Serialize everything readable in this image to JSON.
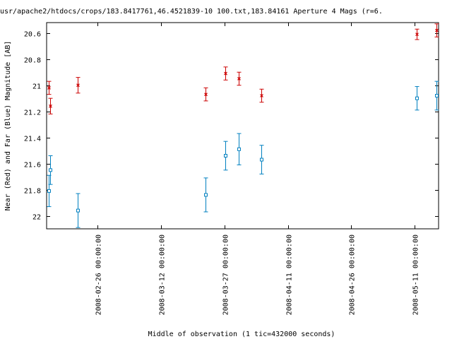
{
  "chart_data": {
    "type": "scatter",
    "title": "usr/apache2/htdocs/crops/183.8417761,46.4521839-10 100.txt,183.84161   Aperture 4 Mags (r=6.",
    "xlabel": "Middle of observation (1 tic=432000 seconds)",
    "ylabel": "Near (Red) and Far (Blue) Magnitude [AB]",
    "ylim": [
      22.1,
      20.52
    ],
    "y_inverted": true,
    "xlim": [
      "2008-02-13 22:00:00",
      "2008-05-16 16:00:00"
    ],
    "x_ticks": [
      "2008-02-26 00:00:00",
      "2008-03-12 00:00:00",
      "2008-03-27 00:00:00",
      "2008-04-11 00:00:00",
      "2008-04-26 00:00:00",
      "2008-05-11 00:00:00"
    ],
    "y_ticks": [
      "20.6",
      "20.8",
      "21",
      "21.2",
      "21.4",
      "21.6",
      "21.8",
      "22"
    ],
    "grid": false,
    "colors": {
      "near": "#cc0000",
      "far": "#0080c0"
    },
    "series": [
      {
        "marker": "x",
        "color": "#cc0000",
        "points": [
          {
            "x": "2008-02-14 12:00:00",
            "y": 21.02,
            "err": 0.05
          },
          {
            "x": "2008-02-14 17:00:00",
            "y": 21.16,
            "err": 0.06
          },
          {
            "x": "2008-02-21 08:00:00",
            "y": 21.0,
            "err": 0.06
          },
          {
            "x": "2008-03-22 14:00:00",
            "y": 21.07,
            "err": 0.05
          },
          {
            "x": "2008-03-27 04:00:00",
            "y": 20.91,
            "err": 0.05
          },
          {
            "x": "2008-03-30 07:00:00",
            "y": 20.95,
            "err": 0.05
          },
          {
            "x": "2008-04-04 16:00:00",
            "y": 21.08,
            "err": 0.05
          },
          {
            "x": "2008-05-11 12:00:00",
            "y": 20.61,
            "err": 0.04
          },
          {
            "x": "2008-05-16 05:00:00",
            "y": 20.58,
            "err": 0.05
          }
        ]
      },
      {
        "marker": "square",
        "color": "#0080c0",
        "points": [
          {
            "x": "2008-02-14 12:00:00",
            "y": 21.81,
            "err": 0.12
          },
          {
            "x": "2008-02-14 17:00:00",
            "y": 21.65,
            "err": 0.11
          },
          {
            "x": "2008-02-21 08:00:00",
            "y": 21.96,
            "err": 0.13
          },
          {
            "x": "2008-03-22 14:00:00",
            "y": 21.84,
            "err": 0.13
          },
          {
            "x": "2008-03-27 04:00:00",
            "y": 21.54,
            "err": 0.11
          },
          {
            "x": "2008-03-30 07:00:00",
            "y": 21.49,
            "err": 0.12
          },
          {
            "x": "2008-04-04 16:00:00",
            "y": 21.57,
            "err": 0.11
          },
          {
            "x": "2008-05-11 12:00:00",
            "y": 21.1,
            "err": 0.09
          },
          {
            "x": "2008-05-16 05:00:00",
            "y": 21.08,
            "err": 0.11
          }
        ]
      }
    ]
  }
}
